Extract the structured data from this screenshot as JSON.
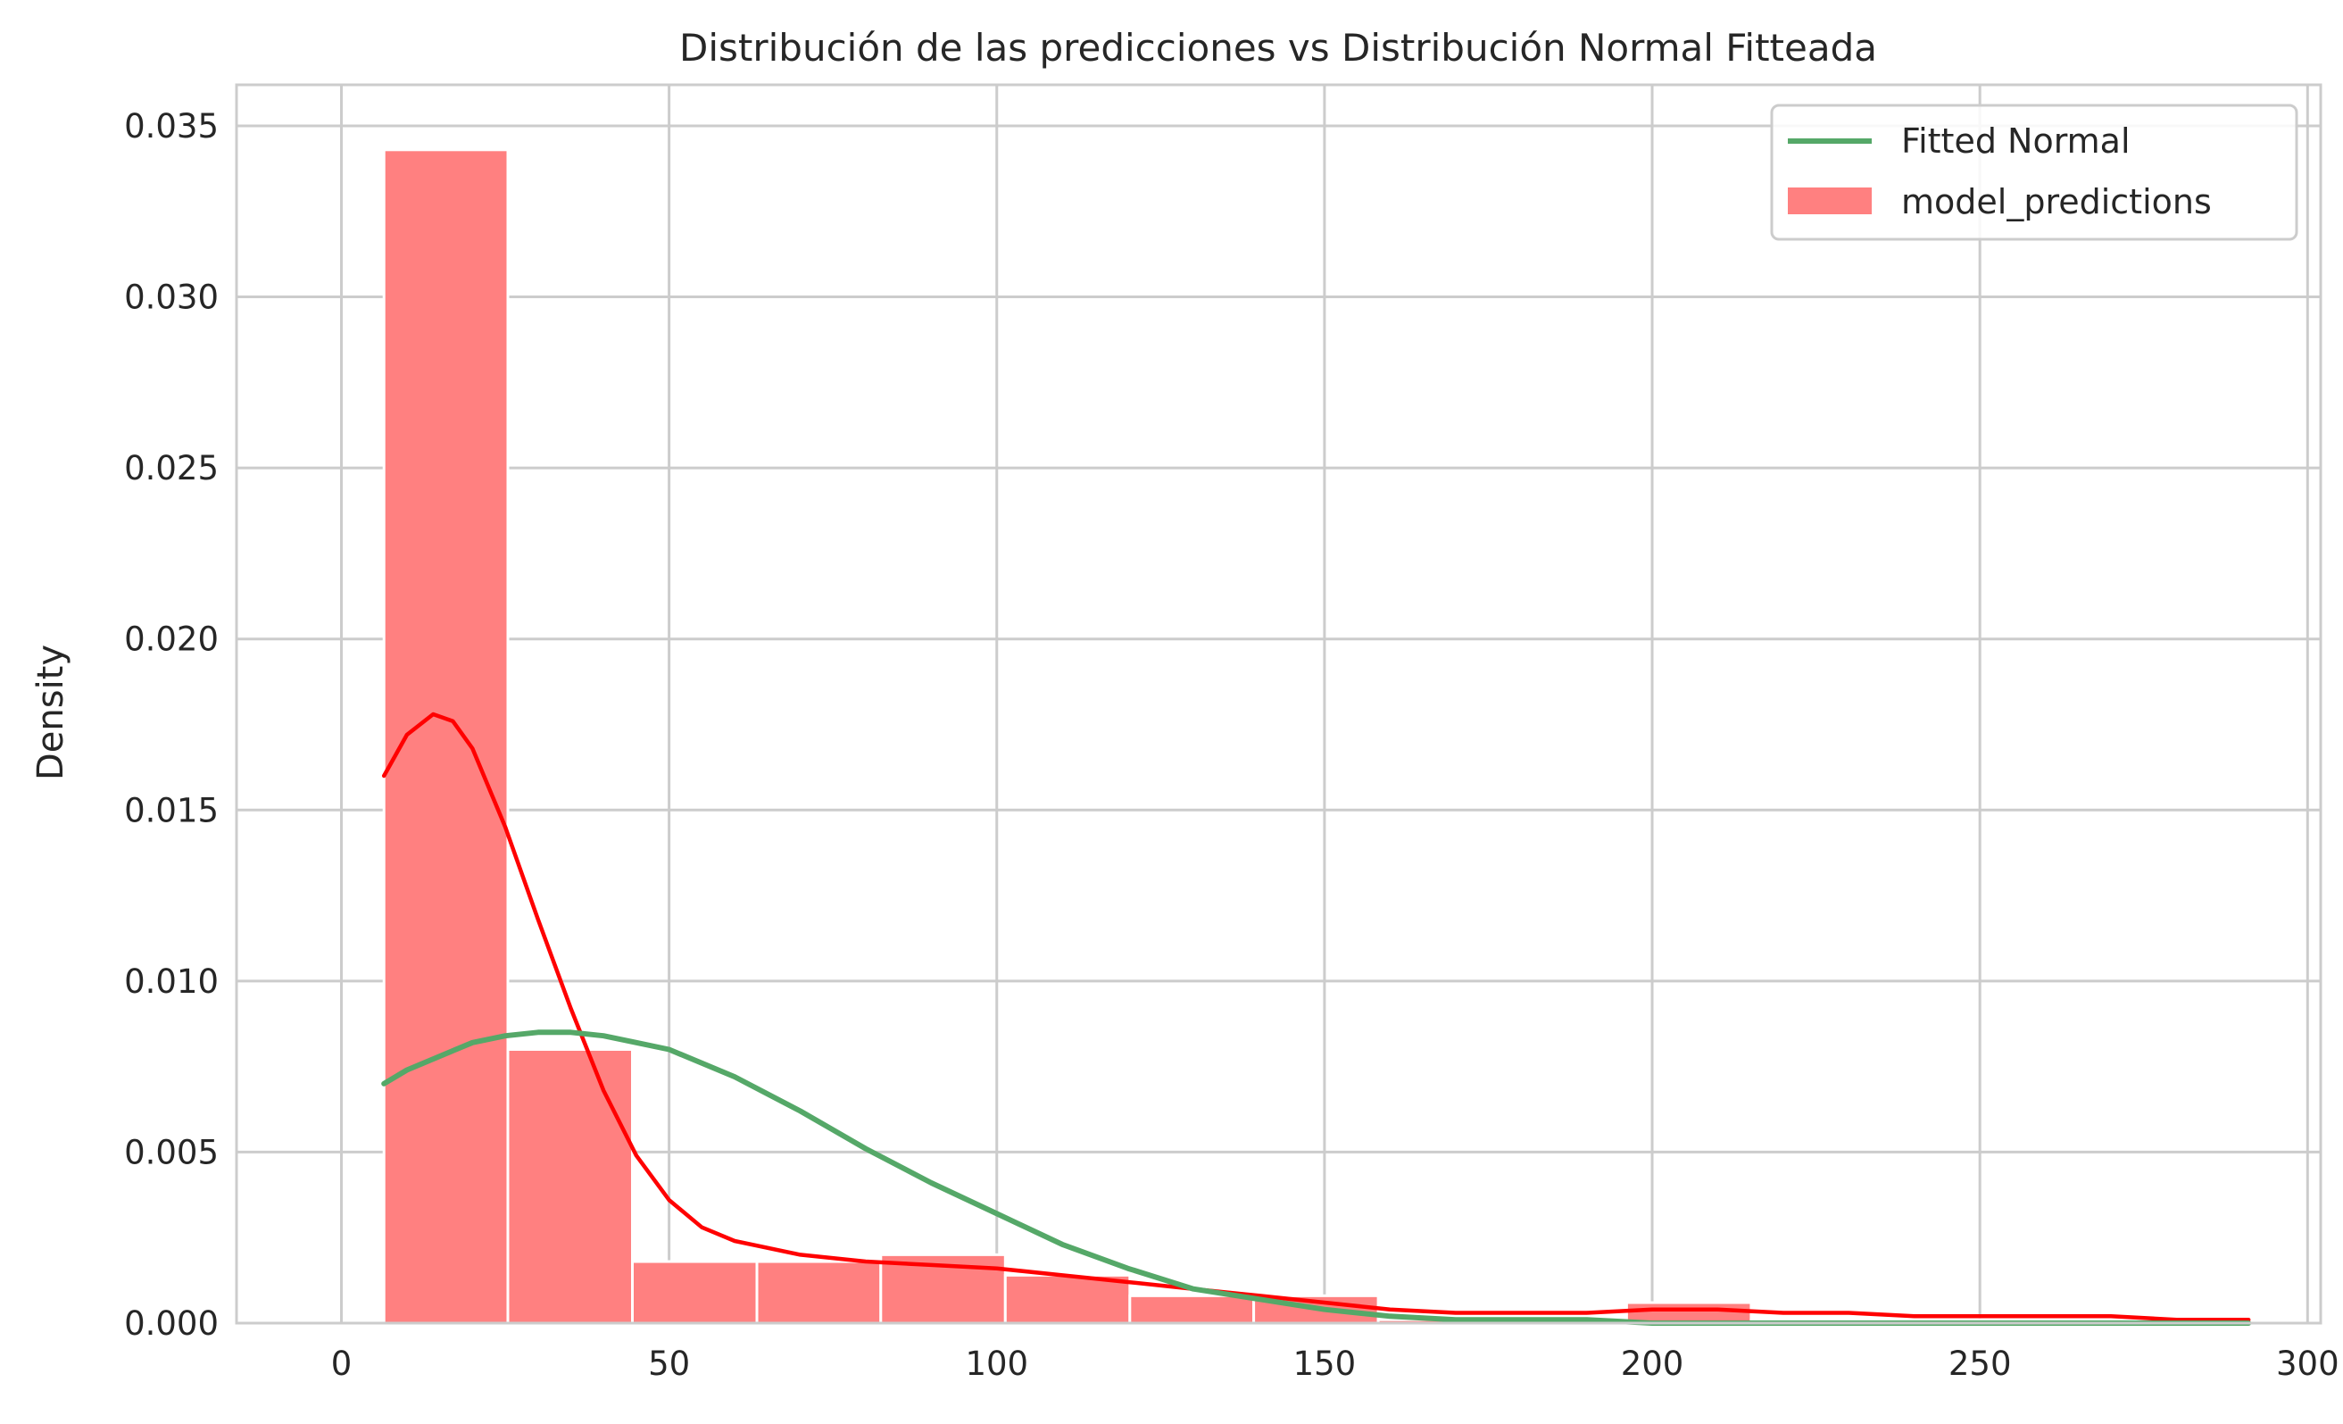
{
  "chart_data": {
    "type": "bar",
    "title": "Distribución de las predicciones vs Distribución Normal Fitteada",
    "xlabel": "",
    "ylabel": "Density",
    "xlim": [
      -16,
      302
    ],
    "ylim": [
      0,
      0.0362
    ],
    "x_ticks": [
      0,
      50,
      100,
      150,
      200,
      250,
      300
    ],
    "y_ticks": [
      0.0,
      0.005,
      0.01,
      0.015,
      0.02,
      0.025,
      0.03,
      0.035
    ],
    "y_tick_labels": [
      "0.000",
      "0.005",
      "0.010",
      "0.015",
      "0.020",
      "0.025",
      "0.030",
      "0.035"
    ],
    "grid": true,
    "legend_position": "top-right",
    "colors": {
      "bars": "#ff8080",
      "kde": "#ff0000",
      "normal": "#55a868",
      "grid": "#cccccc",
      "text": "#262626"
    },
    "series": [
      {
        "name": "model_predictions",
        "kind": "histogram",
        "bins": [
          {
            "x0": 6.5,
            "x1": 25.4,
            "value": 0.0343
          },
          {
            "x0": 25.4,
            "x1": 44.4,
            "value": 0.008
          },
          {
            "x0": 44.4,
            "x1": 63.4,
            "value": 0.0018
          },
          {
            "x0": 63.4,
            "x1": 82.3,
            "value": 0.0018
          },
          {
            "x0": 82.3,
            "x1": 101.3,
            "value": 0.002
          },
          {
            "x0": 101.3,
            "x1": 120.3,
            "value": 0.0014
          },
          {
            "x0": 120.3,
            "x1": 139.2,
            "value": 0.0008
          },
          {
            "x0": 139.2,
            "x1": 158.2,
            "value": 0.0008
          },
          {
            "x0": 158.2,
            "x1": 177.2,
            "value": 0.0001
          },
          {
            "x0": 177.2,
            "x1": 196.1,
            "value": 0.0001
          },
          {
            "x0": 196.1,
            "x1": 215.1,
            "value": 0.0006
          },
          {
            "x0": 215.1,
            "x1": 234.1,
            "value": 0.0001
          },
          {
            "x0": 234.1,
            "x1": 253.0,
            "value": 0.0001
          },
          {
            "x0": 253.0,
            "x1": 272.0,
            "value": 0.0001
          },
          {
            "x0": 272.0,
            "x1": 291.0,
            "value": 0.0001
          }
        ]
      },
      {
        "name": "",
        "kind": "kde",
        "x": [
          6.5,
          10,
          14,
          17,
          20,
          25,
          30,
          35,
          40,
          45,
          50,
          55,
          60,
          70,
          80,
          90,
          100,
          110,
          120,
          130,
          140,
          150,
          160,
          170,
          180,
          190,
          200,
          210,
          220,
          230,
          240,
          250,
          260,
          270,
          280,
          291
        ],
        "y": [
          0.016,
          0.0172,
          0.0178,
          0.0176,
          0.0168,
          0.0145,
          0.0118,
          0.0092,
          0.0068,
          0.0049,
          0.0036,
          0.0028,
          0.0024,
          0.002,
          0.0018,
          0.0017,
          0.0016,
          0.0014,
          0.0012,
          0.001,
          0.0008,
          0.0006,
          0.0004,
          0.0003,
          0.0003,
          0.0003,
          0.0004,
          0.0004,
          0.0003,
          0.0003,
          0.0002,
          0.0002,
          0.0002,
          0.0002,
          0.0001,
          0.0001
        ]
      },
      {
        "name": "Fitted Normal",
        "kind": "normal",
        "x": [
          6.5,
          10,
          15,
          20,
          25,
          30,
          35,
          40,
          45,
          50,
          60,
          70,
          80,
          90,
          100,
          110,
          120,
          130,
          140,
          150,
          160,
          170,
          180,
          190,
          200,
          220,
          240,
          260,
          280,
          291
        ],
        "y": [
          0.007,
          0.0074,
          0.0078,
          0.0082,
          0.0084,
          0.0085,
          0.0085,
          0.0084,
          0.0082,
          0.008,
          0.0072,
          0.0062,
          0.0051,
          0.0041,
          0.0032,
          0.0023,
          0.0016,
          0.001,
          0.0007,
          0.0004,
          0.0002,
          0.0001,
          0.0001,
          0.0001,
          0.0,
          0.0,
          0.0,
          0.0,
          0.0,
          0.0
        ]
      }
    ]
  }
}
